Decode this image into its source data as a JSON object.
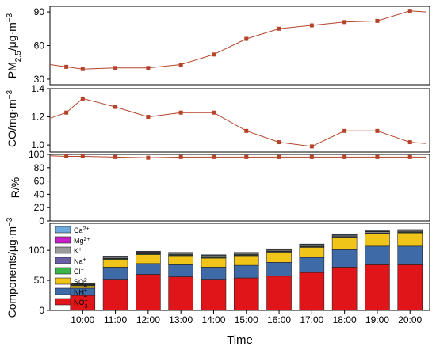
{
  "chart_data": [
    {
      "type": "line",
      "ylabel": "PM2.5/μg·m⁻³",
      "ylabel_main": "PM",
      "ylabel_sub": "2.5",
      "ylabel_rest": "/μg·m",
      "ylabel_sup": "−3",
      "y_ticks": [
        "30",
        "60",
        "90"
      ],
      "ylim": [
        25,
        95
      ],
      "x": [
        9.0,
        9.5,
        10.0,
        11.0,
        12.0,
        13.0,
        14.0,
        15.0,
        16.0,
        17.0,
        18.0,
        19.0,
        20.0,
        20.5
      ],
      "values": [
        43,
        41,
        39,
        40,
        40,
        43,
        52,
        66,
        75,
        78,
        81,
        82,
        91,
        90
      ],
      "color": "#b5432a"
    },
    {
      "type": "line",
      "ylabel": "CO/mg·m⁻³",
      "ylabel_main": "CO/mg·m",
      "ylabel_sup": "−3",
      "y_ticks": [
        "1.0",
        "1.2",
        "1.4"
      ],
      "ylim": [
        0.95,
        1.4
      ],
      "x": [
        9.0,
        9.5,
        10.0,
        11.0,
        12.0,
        13.0,
        14.0,
        15.0,
        16.0,
        17.0,
        18.0,
        19.0,
        20.0,
        20.5
      ],
      "values": [
        1.19,
        1.23,
        1.33,
        1.27,
        1.2,
        1.23,
        1.23,
        1.1,
        1.02,
        0.99,
        1.1,
        1.1,
        1.02,
        1.01
      ],
      "color": "#b5432a"
    },
    {
      "type": "line",
      "ylabel": "R/%",
      "y_ticks": [
        "0",
        "20",
        "40",
        "60",
        "80",
        "100"
      ],
      "ylim": [
        0,
        100
      ],
      "x": [
        9.0,
        9.5,
        10.0,
        11.0,
        12.0,
        13.0,
        14.0,
        15.0,
        16.0,
        17.0,
        18.0,
        19.0,
        20.0,
        20.5
      ],
      "values": [
        98,
        97,
        97,
        96,
        95,
        96,
        96,
        96,
        96,
        96,
        96,
        96,
        96,
        96
      ],
      "color": "#b5432a"
    },
    {
      "type": "bar",
      "stacked": true,
      "ylabel": "Components/μg·m⁻³",
      "ylabel_main": "Components/μg·m",
      "ylabel_sup": "−3",
      "xlabel": "Time",
      "categories": [
        "10:00",
        "11:00",
        "12:00",
        "13:00",
        "14:00",
        "15:00",
        "16:00",
        "17:00",
        "18:00",
        "19:00",
        "20:00"
      ],
      "y_ticks": [
        "0",
        "50",
        "100"
      ],
      "ylim": [
        0,
        145
      ],
      "series": [
        {
          "name": "NO3−",
          "main": "NO",
          "sub": "3",
          "sup": "−",
          "color": "#e0151a",
          "values": [
            25,
            52,
            60,
            56,
            52,
            54,
            57,
            63,
            72,
            76,
            76
          ]
        },
        {
          "name": "NH4+",
          "main": "NH",
          "sub": "4",
          "sup": "+",
          "color": "#3e6ba8",
          "values": [
            12,
            20,
            18,
            20,
            20,
            21,
            23,
            25,
            29,
            31,
            31
          ]
        },
        {
          "name": "SO42−",
          "main": "SO",
          "sub": "4",
          "sup": "2−",
          "color": "#f0c419",
          "values": [
            4,
            13,
            15,
            15,
            15,
            16,
            17,
            17,
            20,
            20,
            22
          ]
        },
        {
          "name": "Cl−",
          "main": "Cl",
          "sup": "−",
          "color": "#3bb54a",
          "values": [
            1,
            1,
            1,
            1,
            1,
            1,
            1,
            1,
            1,
            1,
            1
          ]
        },
        {
          "name": "Na+",
          "main": "Na",
          "sup": "+",
          "color": "#6b5fa3",
          "values": [
            0.5,
            1,
            1,
            1,
            1,
            1,
            1,
            1,
            1,
            1,
            1
          ]
        },
        {
          "name": "K+",
          "main": "K",
          "sup": "+",
          "color": "#9a9a9a",
          "values": [
            1,
            2,
            2,
            2,
            2,
            2,
            2,
            2,
            2,
            2,
            2
          ]
        },
        {
          "name": "Mg2+",
          "main": "Mg",
          "sup": "2+",
          "color": "#c820c8",
          "values": [
            0.3,
            0.5,
            0.5,
            0.5,
            0.5,
            0.5,
            0.5,
            0.5,
            0.5,
            0.5,
            0.5
          ]
        },
        {
          "name": "Ca2+",
          "main": "Ca",
          "sup": "2+",
          "color": "#6fa8dc",
          "values": [
            0.5,
            1,
            1,
            1,
            1,
            1,
            1,
            1,
            1,
            1,
            1
          ]
        }
      ]
    }
  ]
}
